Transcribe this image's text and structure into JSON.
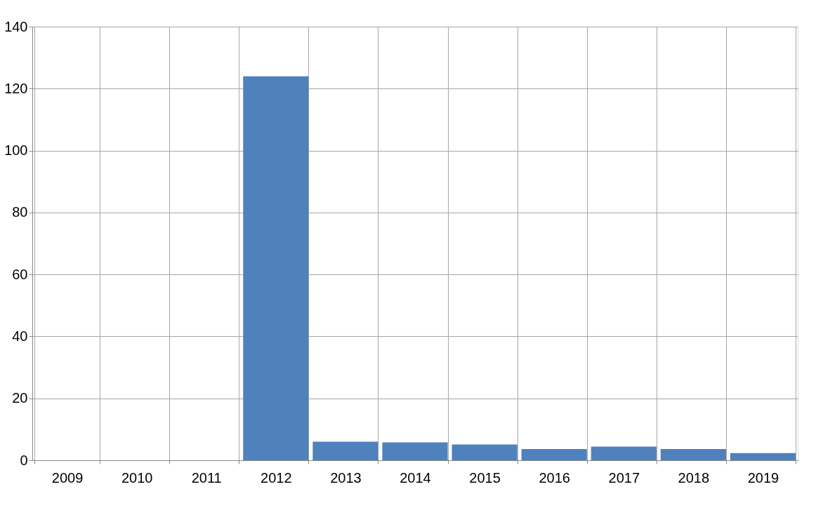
{
  "chart_data": {
    "type": "bar",
    "categories": [
      "2009",
      "2010",
      "2011",
      "2012",
      "2013",
      "2014",
      "2015",
      "2016",
      "2017",
      "2018",
      "2019"
    ],
    "values": [
      null,
      null,
      null,
      124,
      6.0,
      5.8,
      5.1,
      3.6,
      4.4,
      3.6,
      2.3
    ],
    "color": "#4f81bd",
    "ylim": [
      0,
      140
    ],
    "yticks": [
      0,
      20,
      40,
      60,
      80,
      100,
      120,
      140
    ],
    "grid": true
  }
}
